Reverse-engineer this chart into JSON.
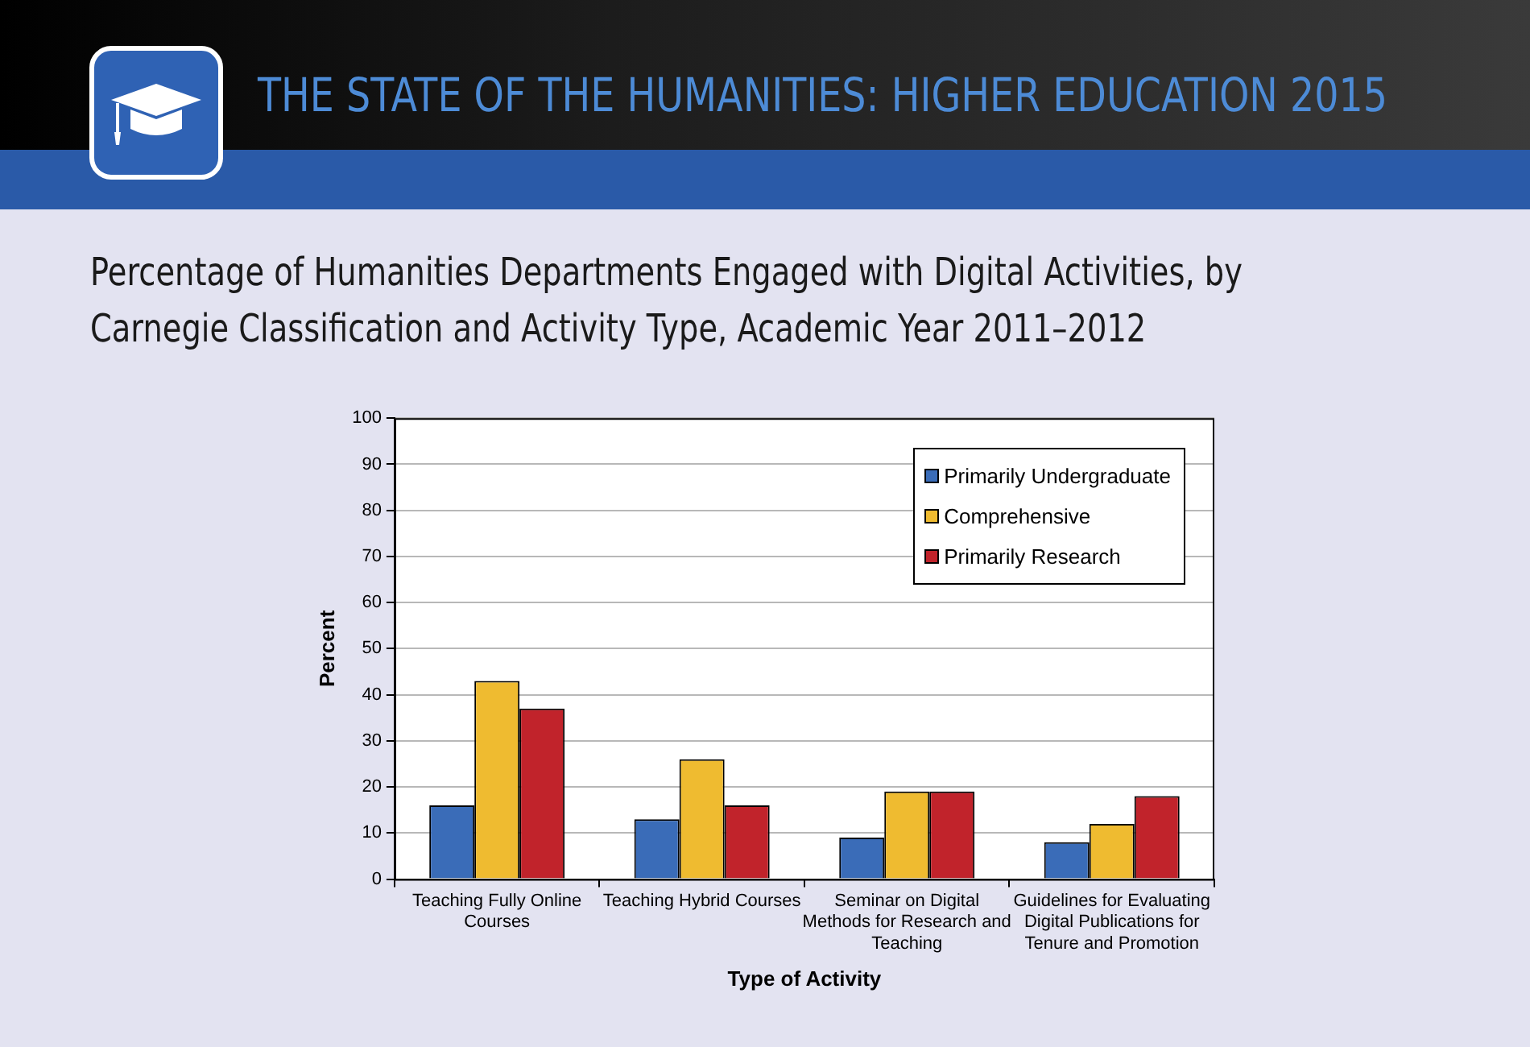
{
  "chart_data": {
    "type": "bar",
    "title": "THE STATE OF THE HUMANITIES: HIGHER EDUCATION 2015",
    "subtitle": "Percentage of Humanities Departments Engaged with Digital Activities, by Carnegie Classification and Activity Type, Academic Year 2011–2012",
    "xlabel": "Type of Activity",
    "ylabel": "Percent",
    "categories": [
      "Teaching Fully Online Courses",
      "Teaching Hybrid Courses",
      "Seminar on Digital Methods for Research and Teaching",
      "Guidelines for Evaluating Digital Publications for Tenure and Promotion"
    ],
    "series": [
      {
        "name": "Primarily Undergraduate",
        "color": "#3a6cb8",
        "values": [
          16,
          13,
          9,
          8
        ]
      },
      {
        "name": "Comprehensive",
        "color": "#efbb30",
        "values": [
          43,
          26,
          19,
          12
        ]
      },
      {
        "name": "Primarily Research",
        "color": "#c1232b",
        "values": [
          37,
          16,
          19,
          18
        ]
      }
    ],
    "ylim": [
      0,
      100
    ],
    "yticks": [
      0,
      10,
      20,
      30,
      40,
      50,
      60,
      70,
      80,
      90,
      100
    ],
    "grid": "y",
    "legend": "top right"
  }
}
